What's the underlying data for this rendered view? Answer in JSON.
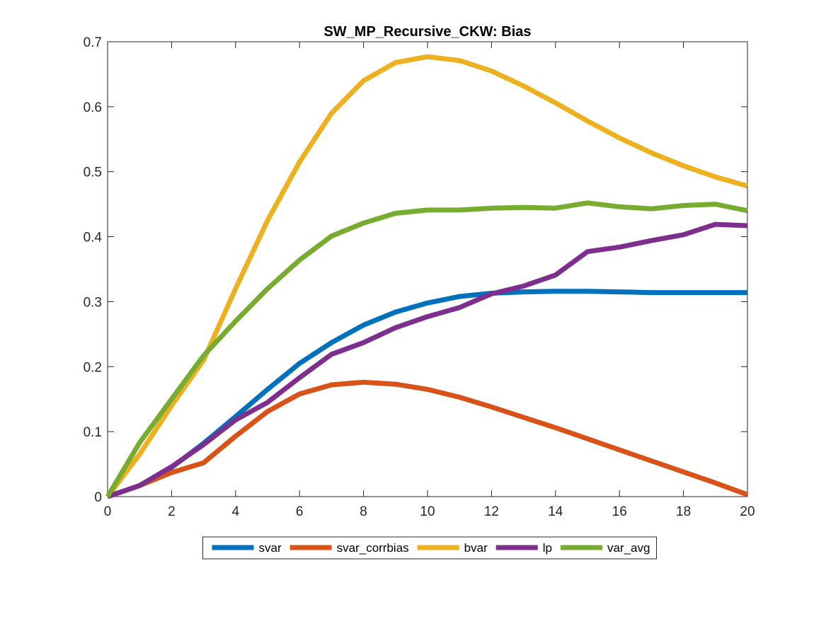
{
  "chart_data": {
    "type": "line",
    "title": "SW_MP_Recursive_CKW: Bias",
    "xlabel": "",
    "ylabel": "",
    "xlim": [
      0,
      20
    ],
    "ylim": [
      0,
      0.7
    ],
    "x_ticks": [
      0,
      2,
      4,
      6,
      8,
      10,
      12,
      14,
      16,
      18,
      20
    ],
    "y_ticks": [
      0,
      0.1,
      0.2,
      0.3,
      0.4,
      0.5,
      0.6,
      0.7
    ],
    "grid": false,
    "legend_position": "bottom-outside",
    "x": [
      0,
      1,
      2,
      3,
      4,
      5,
      6,
      7,
      8,
      9,
      10,
      11,
      12,
      13,
      14,
      15,
      16,
      17,
      18,
      19,
      20
    ],
    "series": [
      {
        "name": "svar",
        "color": "#0072BD",
        "values": [
          0.0,
          0.017,
          0.045,
          0.082,
          0.123,
          0.165,
          0.205,
          0.237,
          0.264,
          0.284,
          0.298,
          0.308,
          0.313,
          0.315,
          0.316,
          0.316,
          0.315,
          0.314,
          0.314,
          0.314,
          0.314
        ]
      },
      {
        "name": "svar_corrbias",
        "color": "#D95319",
        "values": [
          0.0,
          0.017,
          0.037,
          0.052,
          0.093,
          0.131,
          0.158,
          0.172,
          0.176,
          0.173,
          0.165,
          0.153,
          0.138,
          0.122,
          0.106,
          0.089,
          0.072,
          0.055,
          0.038,
          0.021,
          0.003
        ]
      },
      {
        "name": "bvar",
        "color": "#EDB120",
        "values": [
          0.0,
          0.065,
          0.14,
          0.21,
          0.32,
          0.425,
          0.515,
          0.59,
          0.64,
          0.668,
          0.677,
          0.671,
          0.655,
          0.632,
          0.606,
          0.578,
          0.552,
          0.529,
          0.509,
          0.492,
          0.478
        ]
      },
      {
        "name": "lp",
        "color": "#7E2F8E",
        "values": [
          0.0,
          0.017,
          0.046,
          0.08,
          0.118,
          0.145,
          0.183,
          0.219,
          0.237,
          0.26,
          0.277,
          0.291,
          0.312,
          0.324,
          0.341,
          0.377,
          0.384,
          0.394,
          0.403,
          0.419,
          0.417
        ]
      },
      {
        "name": "var_avg",
        "color": "#77AC30",
        "values": [
          0.0,
          0.083,
          0.15,
          0.217,
          0.27,
          0.32,
          0.364,
          0.401,
          0.421,
          0.436,
          0.441,
          0.441,
          0.444,
          0.445,
          0.444,
          0.452,
          0.446,
          0.443,
          0.448,
          0.45,
          0.44
        ]
      }
    ]
  }
}
